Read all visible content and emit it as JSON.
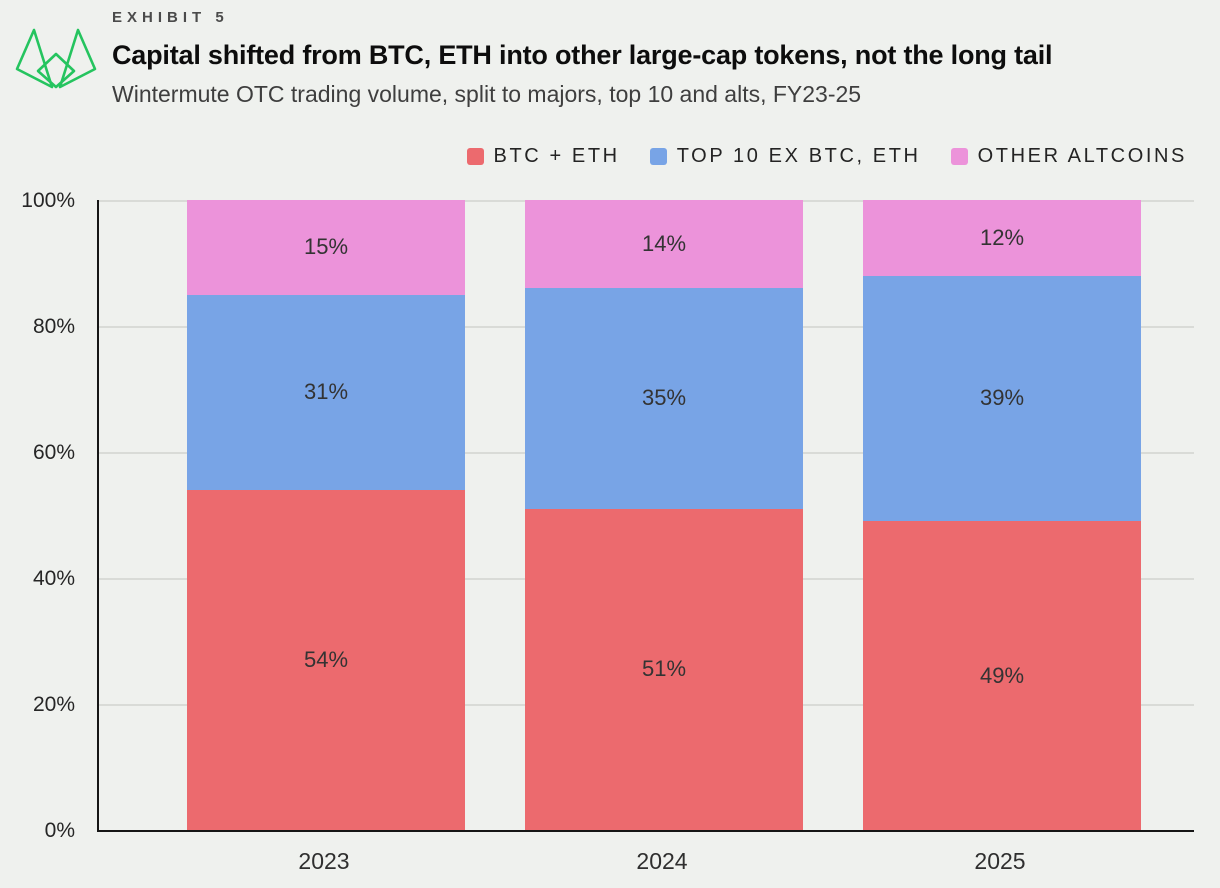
{
  "exhibit_label": "EXHIBIT 5",
  "title": "Capital shifted from BTC, ETH into other large-cap tokens, not the long tail",
  "subtitle": "Wintermute OTC trading volume, split to majors, top 10 and alts, FY23-25",
  "logo": {
    "name": "wintermute-logo",
    "color": "#25c45f"
  },
  "colors": {
    "background": "#eff1ee",
    "axis": "#161616",
    "gridline": "#d9dbd7",
    "value_label": "#333333"
  },
  "chart_data": {
    "type": "bar",
    "stacked": true,
    "title": "Capital shifted from BTC, ETH into other large-cap tokens, not the long tail",
    "subtitle": "Wintermute OTC trading volume, split to majors, top 10 and alts, FY23-25",
    "categories": [
      "2023",
      "2024",
      "2025"
    ],
    "series": [
      {
        "name": "BTC + ETH",
        "color": "#ec6a6e",
        "values": [
          54,
          51,
          49
        ]
      },
      {
        "name": "TOP 10 EX BTC, ETH",
        "color": "#78a4e6",
        "values": [
          31,
          35,
          39
        ]
      },
      {
        "name": "OTHER ALTCOINS",
        "color": "#ec93da",
        "values": [
          15,
          14,
          12
        ]
      }
    ],
    "value_suffix": "%",
    "y_ticks": [
      "100%",
      "80%",
      "60%",
      "40%",
      "20%",
      "0%"
    ],
    "ylim": [
      0,
      100
    ],
    "grid": true,
    "legend_position": "top-right",
    "xlabel": "",
    "ylabel": ""
  }
}
